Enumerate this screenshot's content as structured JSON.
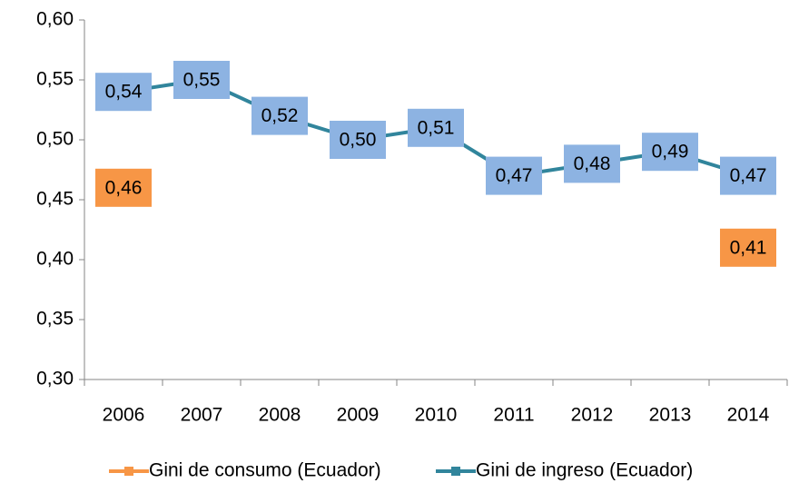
{
  "chart_data": {
    "type": "line",
    "categories": [
      "2006",
      "2007",
      "2008",
      "2009",
      "2010",
      "2011",
      "2012",
      "2013",
      "2014"
    ],
    "series": [
      {
        "name": "Gini de consumo (Ecuador)",
        "color": "#f79646",
        "label_color": "#f79646",
        "values": [
          0.46,
          null,
          null,
          null,
          null,
          null,
          null,
          null,
          0.41
        ],
        "value_labels": [
          "0,46",
          null,
          null,
          null,
          null,
          null,
          null,
          null,
          "0,41"
        ]
      },
      {
        "name": "Gini de ingreso (Ecuador)",
        "color": "#31859c",
        "label_color": "#8db3e2",
        "values": [
          0.54,
          0.55,
          0.52,
          0.5,
          0.51,
          0.47,
          0.48,
          0.49,
          0.47
        ],
        "value_labels": [
          "0,54",
          "0,55",
          "0,52",
          "0,50",
          "0,51",
          "0,47",
          "0,48",
          "0,49",
          "0,47"
        ]
      }
    ],
    "ylim": [
      0.3,
      0.6
    ],
    "yticks": [
      {
        "value": 0.3,
        "label": "0,30"
      },
      {
        "value": 0.35,
        "label": "0,35"
      },
      {
        "value": 0.4,
        "label": "0,40"
      },
      {
        "value": 0.45,
        "label": "0,45"
      },
      {
        "value": 0.5,
        "label": "0,50"
      },
      {
        "value": 0.55,
        "label": "0,55"
      },
      {
        "value": 0.6,
        "label": "0,60"
      }
    ],
    "grid": false,
    "legend": "bottom"
  }
}
